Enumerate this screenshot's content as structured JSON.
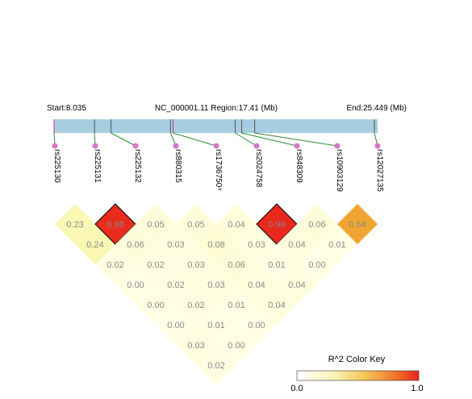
{
  "header": {
    "start": "Start:8.035",
    "region": "NC_000001.11 Region:17.41 (Mb)",
    "end": "End:25.449 (Mb)"
  },
  "snps": [
    "rs225130",
    "rs225131",
    "rs225132",
    "rs880315",
    "rs1736750⁴",
    "rs2024758",
    "rs848309",
    "rs10903129",
    "rs12027135"
  ],
  "genomic_positions": [
    0.0,
    0.125,
    0.176,
    0.36,
    0.368,
    0.56,
    0.58,
    0.62,
    0.99
  ],
  "ld_r2": [
    [
      "0.23",
      "0.24",
      "0.02",
      "0.00",
      "0.00",
      "0.00",
      "0.03",
      "0.02"
    ],
    [
      "0.98",
      "0.06",
      "0.02",
      "0.02",
      "0.02",
      "0.01",
      "0.00"
    ],
    [
      "0.05",
      "0.03",
      "0.03",
      "0.03",
      "0.01",
      "0.00"
    ],
    [
      "0.05",
      "0.08",
      "0.06",
      "0.04",
      "0.04"
    ],
    [
      "0.04",
      "0.03",
      "0.01",
      "0.04"
    ],
    [
      "0.99",
      "0.04",
      "0.00"
    ],
    [
      "0.06",
      "0.01"
    ],
    [
      "0.64"
    ]
  ],
  "color_key": {
    "title": "R^2 Color Key",
    "min_label": "0.0",
    "max_label": "1.0"
  },
  "colors": {
    "track": "#a6cde0",
    "tick_mark": "#cc3366",
    "connector": "#2e8b2e",
    "snp_dot": "#d977c7",
    "low": "#ffffe6",
    "mid": "#f5ef7a",
    "high": "#e8241a",
    "outline": "#000000"
  }
}
